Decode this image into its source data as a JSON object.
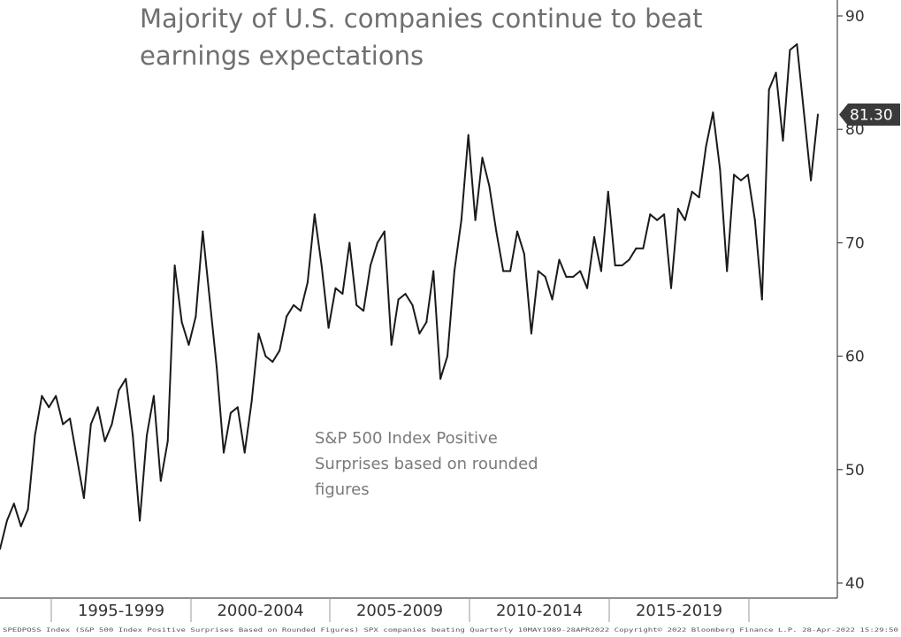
{
  "chart_data": {
    "type": "line",
    "title_line1": "Majority of U.S. companies continue to  beat",
    "title_line2": "earnings expectations",
    "annotation": [
      "S&P 500 Index Positive",
      "Surprises based on rounded",
      "figures"
    ],
    "ylim": [
      38,
      93
    ],
    "y_ticks": [
      40,
      50,
      60,
      70,
      80,
      90
    ],
    "x_tick_labels": [
      "1995-1999",
      "2000-2004",
      "2005-2009",
      "2010-2014",
      "2015-2019"
    ],
    "last_value_label": "81.30",
    "series": [
      {
        "values": [
          43.0,
          45.5,
          47.0,
          45.0,
          46.5,
          53.0,
          56.5,
          55.5,
          56.5,
          54.0,
          54.5,
          51.0,
          47.5,
          54.0,
          55.5,
          52.5,
          54.0,
          57.0,
          58.0,
          53.0,
          45.5,
          53.0,
          56.5,
          49.0,
          52.5,
          68.0,
          63.0,
          61.0,
          63.5,
          71.0,
          65.0,
          59.0,
          51.5,
          55.0,
          55.5,
          51.5,
          56.0,
          62.0,
          60.0,
          59.5,
          60.5,
          63.5,
          64.5,
          64.0,
          66.5,
          72.5,
          68.0,
          62.5,
          66.0,
          65.5,
          70.0,
          64.5,
          64.0,
          68.0,
          70.0,
          71.0,
          61.0,
          65.0,
          65.5,
          64.5,
          62.0,
          63.0,
          67.5,
          58.0,
          60.0,
          67.5,
          72.0,
          79.5,
          72.0,
          77.5,
          75.0,
          71.0,
          67.5,
          67.5,
          71.0,
          69.0,
          62.0,
          67.5,
          67.0,
          65.0,
          68.5,
          67.0,
          67.0,
          67.5,
          66.0,
          70.5,
          67.5,
          74.5,
          68.0,
          68.0,
          68.5,
          69.5,
          69.5,
          72.5,
          72.0,
          72.5,
          66.0,
          73.0,
          72.0,
          74.5,
          74.0,
          78.5,
          81.5,
          76.5,
          67.5,
          76.0,
          75.5,
          76.0,
          72.0,
          65.0,
          83.5,
          85.0,
          79.0,
          87.0,
          87.5,
          81.5,
          75.5,
          81.3
        ],
        "color": "#1a1a1a"
      }
    ]
  },
  "footer": "SPEDPOSS Index (S&P 500 Index Positive Surprises Based on Rounded Figures) SPX companies beating Quarterly 10MAY1989-28APR2022   Copyright© 2022 Bloomberg Finance L.P.   28-Apr-2022 15:29:50"
}
